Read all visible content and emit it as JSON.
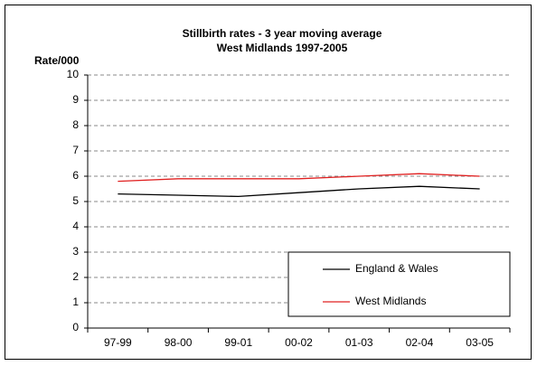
{
  "chart_data": {
    "type": "line",
    "title": "Stillbirth rates - 3 year moving average",
    "subtitle": "West Midlands 1997-2005",
    "y_label": "Rate/000",
    "categories": [
      "97-99",
      "98-00",
      "99-01",
      "00-02",
      "01-03",
      "02-04",
      "03-05"
    ],
    "series": [
      {
        "name": "England & Wales",
        "color": "#000000",
        "values": [
          5.3,
          5.25,
          5.2,
          5.35,
          5.5,
          5.6,
          5.5
        ]
      },
      {
        "name": "West Midlands",
        "color": "#e02020",
        "values": [
          5.8,
          5.9,
          5.9,
          5.9,
          6.0,
          6.1,
          6.0
        ]
      }
    ],
    "ylim": [
      0,
      10
    ],
    "yticks": [
      0,
      1,
      2,
      3,
      4,
      5,
      6,
      7,
      8,
      9,
      10
    ],
    "grid": true,
    "legend": "lower right"
  }
}
